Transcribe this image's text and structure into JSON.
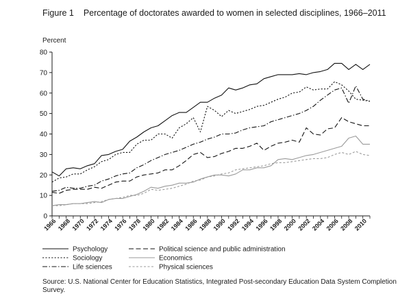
{
  "figure": {
    "label": "Figure 1",
    "title": "Percentage of doctorates awarded to women in selected disciplines, 1966–2011",
    "source": "Source: U.S. National Center for Education Statistics, Integrated Post-secondary Education Data System Completion Survey."
  },
  "chart_data": {
    "type": "line",
    "title": "Percentage of doctorates awarded to women in selected disciplines, 1966–2011",
    "xlabel": "",
    "ylabel": "Percent",
    "ylim": [
      0,
      80
    ],
    "xlim": [
      1966,
      2011
    ],
    "yticks": [
      0,
      10,
      20,
      30,
      40,
      50,
      60,
      70,
      80
    ],
    "xticks": [
      1966,
      1968,
      1970,
      1972,
      1974,
      1976,
      1978,
      1980,
      1982,
      1984,
      1986,
      1988,
      1990,
      1992,
      1994,
      1996,
      1998,
      2000,
      2002,
      2004,
      2006,
      2008,
      2010
    ],
    "grid": false,
    "legend_position": "bottom",
    "x": [
      1966,
      1967,
      1968,
      1969,
      1970,
      1971,
      1972,
      1973,
      1974,
      1975,
      1976,
      1977,
      1978,
      1979,
      1980,
      1981,
      1982,
      1983,
      1984,
      1985,
      1986,
      1987,
      1988,
      1989,
      1990,
      1991,
      1992,
      1993,
      1994,
      1995,
      1996,
      1997,
      1998,
      1999,
      2000,
      2001,
      2002,
      2003,
      2004,
      2005,
      2006,
      2007,
      2008,
      2009,
      2010,
      2011
    ],
    "series": [
      {
        "name": "Psychology",
        "style": "solid",
        "color": "#111111",
        "values": [
          21.5,
          19.5,
          23,
          23.5,
          23,
          24.5,
          25.5,
          29.5,
          30,
          31.5,
          32.5,
          36.5,
          38.5,
          41,
          43,
          44,
          46.5,
          49,
          50.5,
          50.5,
          53,
          55.5,
          55.5,
          57.5,
          59,
          62.5,
          61.5,
          62.5,
          64,
          64.5,
          67,
          68,
          69,
          69,
          69,
          69.5,
          69,
          70,
          70.5,
          71.5,
          74.5,
          74.5,
          71.5,
          74,
          71.5,
          74
        ]
      },
      {
        "name": "Sociology",
        "style": "dotted",
        "color": "#111111",
        "values": [
          16.5,
          18.5,
          19,
          20.5,
          20.5,
          22.5,
          24,
          26.5,
          27.5,
          30,
          31,
          31,
          35,
          37,
          37,
          40,
          40,
          38,
          43,
          45,
          48,
          41,
          53.5,
          51.5,
          48.5,
          51.5,
          50,
          51,
          52,
          53.5,
          54,
          55.5,
          57,
          58,
          60,
          60.5,
          63,
          61.5,
          62,
          62,
          65.5,
          64,
          61,
          57,
          56.5,
          56
        ]
      },
      {
        "name": "Life sciences",
        "style": "dashdot",
        "color": "#111111",
        "values": [
          12,
          12.5,
          14,
          13.5,
          13.5,
          14.5,
          15,
          17,
          18,
          19.5,
          20.5,
          21,
          23.5,
          25,
          27,
          28.5,
          30,
          31,
          32,
          33.5,
          35,
          36,
          37.5,
          38.5,
          40,
          40,
          40.5,
          42,
          43,
          43.5,
          44,
          46,
          47,
          48,
          49,
          50,
          51.5,
          53.5,
          56.5,
          59,
          61.5,
          62.5,
          55,
          63.5,
          57,
          56
        ]
      },
      {
        "name": "Political science and public administration",
        "style": "longdash",
        "color": "#111111",
        "values": [
          11.5,
          11,
          12.5,
          13,
          13,
          13,
          14,
          13.5,
          15,
          16.5,
          17,
          17,
          19,
          20,
          20.5,
          21,
          22.5,
          22.5,
          24.5,
          27,
          30,
          31,
          28.5,
          29,
          30.5,
          31.5,
          33,
          33,
          34,
          35.5,
          32,
          34,
          35.5,
          36,
          37,
          36,
          43,
          40,
          39.5,
          42.5,
          43,
          48,
          46,
          45,
          44,
          44
        ]
      },
      {
        "name": "Economics",
        "style": "solid",
        "color": "#9a9a9a",
        "values": [
          5,
          5.5,
          5.5,
          6,
          6,
          6.5,
          7,
          6.5,
          8,
          8.5,
          8.5,
          9.5,
          10.5,
          12,
          14,
          13.5,
          14.5,
          15,
          16,
          16,
          16.5,
          18,
          19,
          20,
          20,
          19.5,
          20.5,
          22.5,
          22.5,
          23.5,
          23.5,
          24.5,
          27.5,
          28,
          27.5,
          28.5,
          29.5,
          30,
          31,
          32,
          33,
          34,
          38,
          39,
          35,
          35
        ]
      },
      {
        "name": "Physical sciences",
        "style": "dashed",
        "color": "#9a9a9a",
        "values": [
          5,
          5,
          5.5,
          6,
          6,
          6,
          6.5,
          7,
          8,
          8.5,
          9,
          10,
          10,
          11,
          13,
          12.5,
          13,
          13.5,
          14.5,
          15.5,
          17,
          17.5,
          19,
          19.5,
          20.5,
          21,
          22.5,
          23,
          23.5,
          24,
          24.5,
          25.5,
          26,
          26,
          26.5,
          27,
          27.5,
          28,
          28,
          28.5,
          30,
          31,
          30,
          31.5,
          30,
          29.5
        ]
      }
    ],
    "legend_order": [
      "Psychology",
      "Political science and public administration",
      "Sociology",
      "Economics",
      "Life sciences",
      "Physical sciences"
    ]
  }
}
